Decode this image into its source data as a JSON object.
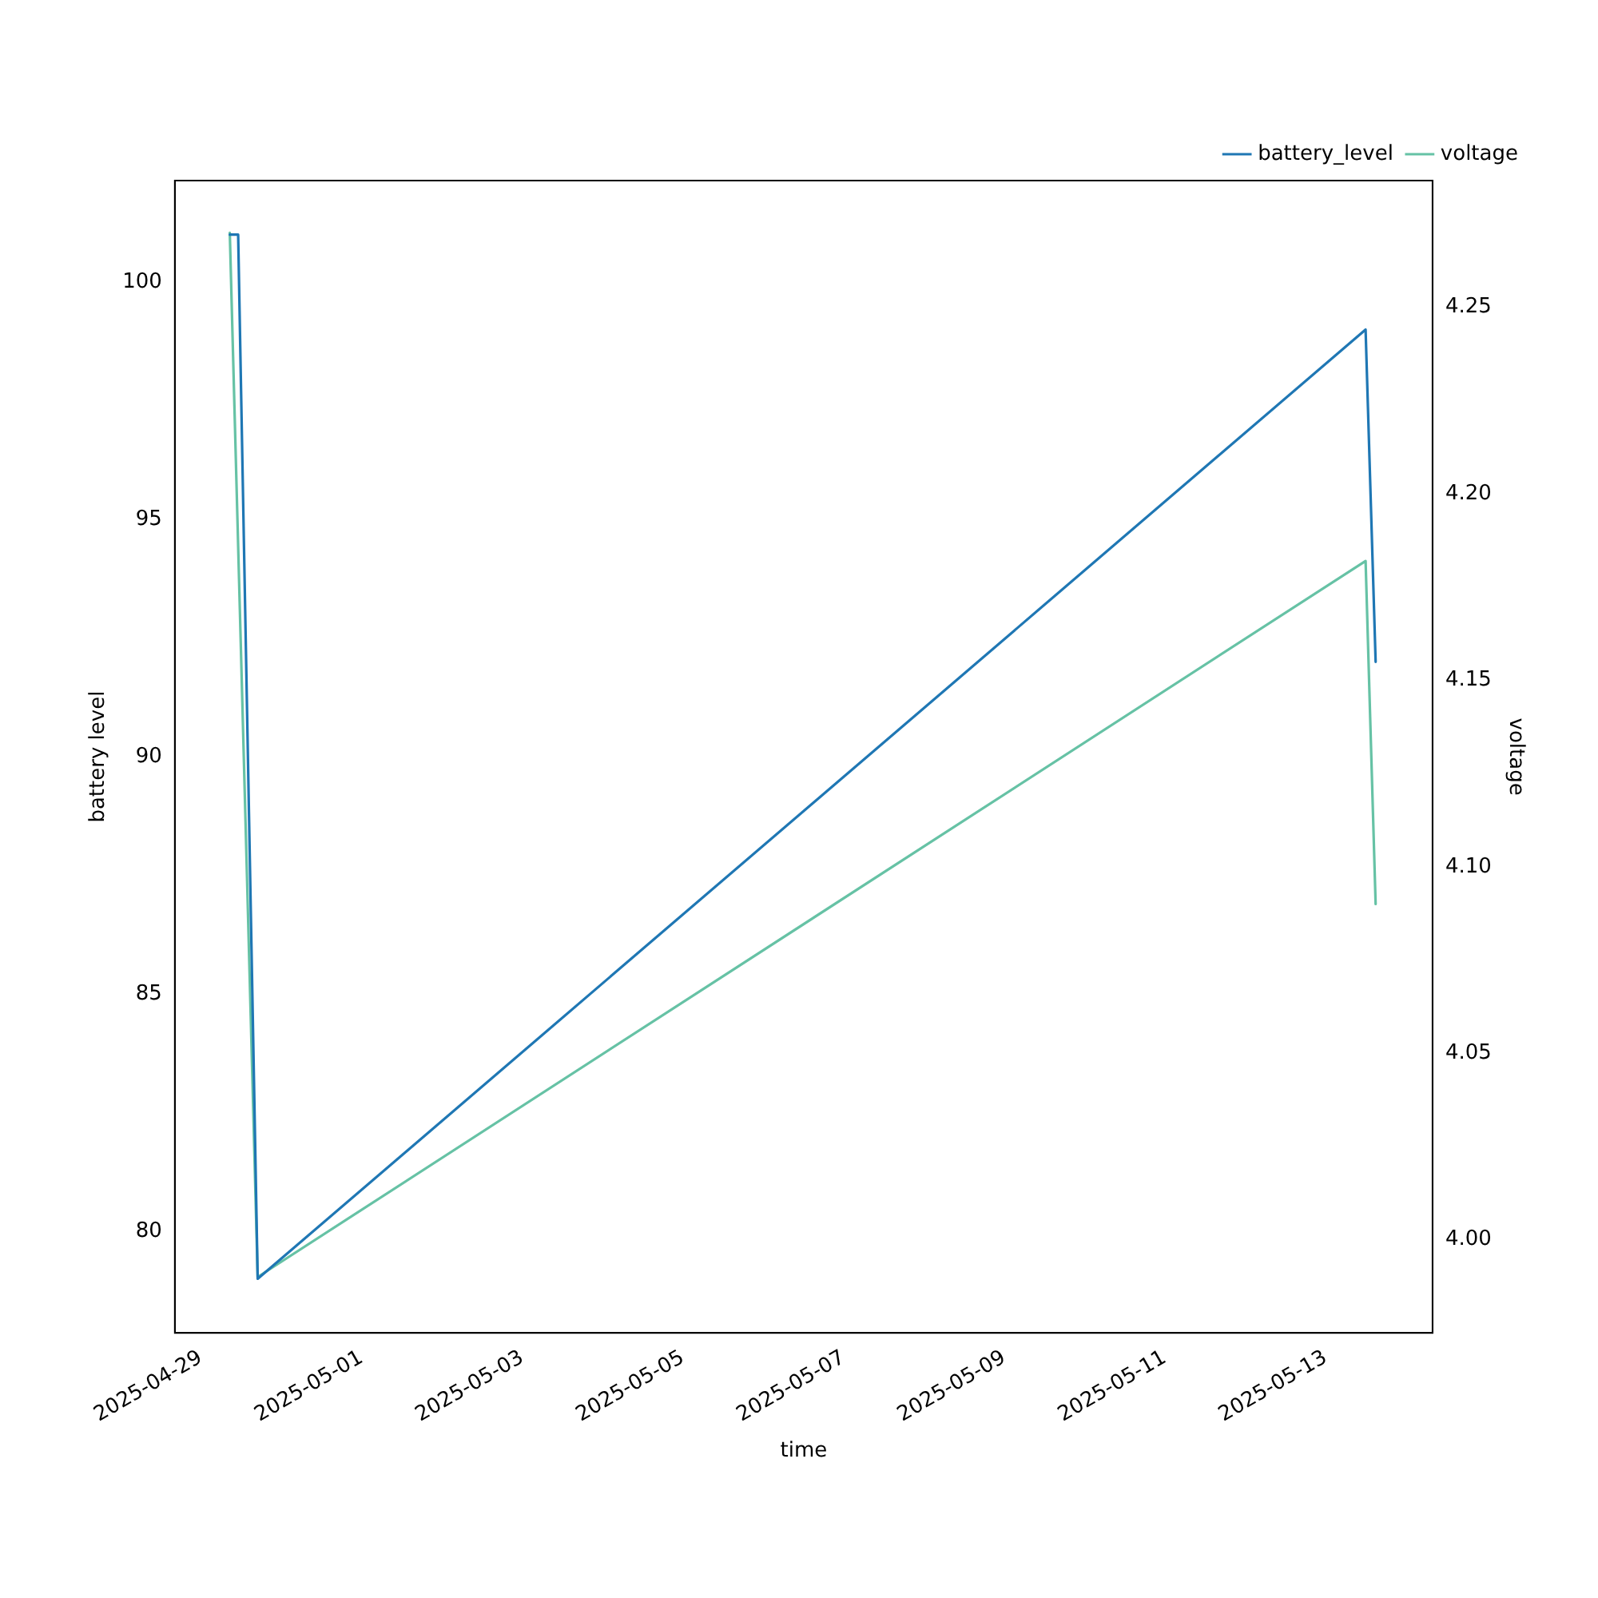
{
  "chart_data": {
    "type": "line",
    "xlabel": "time",
    "ylabel": "battery level",
    "y2label": "voltage",
    "xlim": [
      "2025-04-28T16:15",
      "2025-05-14T08:00"
    ],
    "xticks": [
      "2025-04-29",
      "2025-05-01",
      "2025-05-03",
      "2025-05-05",
      "2025-05-07",
      "2025-05-09",
      "2025-05-11",
      "2025-05-13"
    ],
    "ylim": [
      77.86,
      102.14
    ],
    "yticks": [
      80,
      85,
      90,
      95,
      100
    ],
    "y2lim": [
      3.975,
      4.284
    ],
    "y2ticks": [
      {
        "value": 4.0,
        "label": "4.00"
      },
      {
        "value": 4.05,
        "label": "4.05"
      },
      {
        "value": 4.1,
        "label": "4.10"
      },
      {
        "value": 4.15,
        "label": "4.15"
      },
      {
        "value": 4.2,
        "label": "4.20"
      },
      {
        "value": 4.25,
        "label": "4.25"
      }
    ],
    "legend": "top right",
    "grid": false,
    "series": [
      {
        "name": "battery_level",
        "color": "#1f77b4",
        "x": [
          "2025-04-29T08:40",
          "2025-04-29T11:10",
          "2025-04-29T17:00",
          "2025-05-13T12:00",
          "2025-05-13T15:00"
        ],
        "values": [
          101,
          101,
          79,
          99,
          92
        ]
      },
      {
        "name": "voltage",
        "color": "#66c2a5",
        "axis": "y2",
        "x": [
          "2025-04-29T08:40",
          "2025-04-29T17:00",
          "2025-05-13T12:00",
          "2025-05-13T15:00"
        ],
        "values": [
          4.27,
          3.99,
          4.182,
          4.09
        ]
      }
    ]
  }
}
